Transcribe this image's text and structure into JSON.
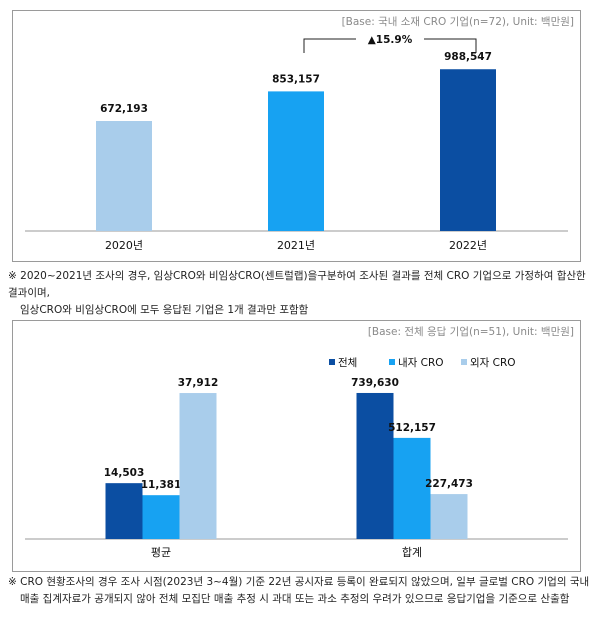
{
  "chart_data": [
    {
      "type": "bar",
      "base_note": "[Base: 국내 소재 CRO 기업(n=72), Unit: 백만원]",
      "categories": [
        "2020년",
        "2021년",
        "2022년"
      ],
      "values": [
        672193,
        853157,
        988547
      ],
      "value_labels": [
        "672,193",
        "853,157",
        "988,547"
      ],
      "colors": [
        "#a9cdeb",
        "#17a2f2",
        "#0b4ea2"
      ],
      "growth_annotation": "▲15.9%",
      "ylim": [
        0,
        1100000
      ]
    },
    {
      "type": "bar",
      "base_note": "[Base: 전체 응답 기업(n=51), Unit: 백만원]",
      "groups": [
        {
          "label": "평균",
          "data_label": "avg"
        },
        {
          "label": "합계",
          "data_label": "sum"
        }
      ],
      "series": [
        {
          "name": "전체",
          "color": "#0b4ea2",
          "values": [
            14503,
            739630
          ],
          "value_labels": [
            "14,503",
            "739,630"
          ]
        },
        {
          "name": "내자 CRO",
          "color": "#17a2f2",
          "values": [
            11381,
            512157
          ],
          "value_labels": [
            "11,381",
            "512,157"
          ]
        },
        {
          "name": "외자 CRO",
          "color": "#a9cdeb",
          "values": [
            37912,
            227473
          ],
          "value_labels": [
            "37,912",
            "227,473"
          ]
        }
      ],
      "group_scale_max": [
        40000,
        780000
      ]
    }
  ],
  "notes": {
    "note1_line1": "※ 2020~2021년 조사의 경우, 임상CRO와 비임상CRO(센트럴랩)을구분하여 조사된 결과를 전체 CRO 기업으로 가정하여 합산한 결과이며,",
    "note1_line2": "임상CRO와 비임상CRO에 모두 응답된 기업은 1개 결과만 포함함",
    "note2_line1": "※ CRO 현황조사의 경우 조사 시점(2023년 3~4월) 기준 22년 공시자료 등록이 완료되지 않았으며, 일부 글로벌 CRO 기업의 국내",
    "note2_line2": "매출 집계자료가 공개되지 않아 전체 모집단 매출 추정 시 과대 또는 과소 추정의 우려가 있으므로 응답기업을 기준으로 산출함"
  }
}
